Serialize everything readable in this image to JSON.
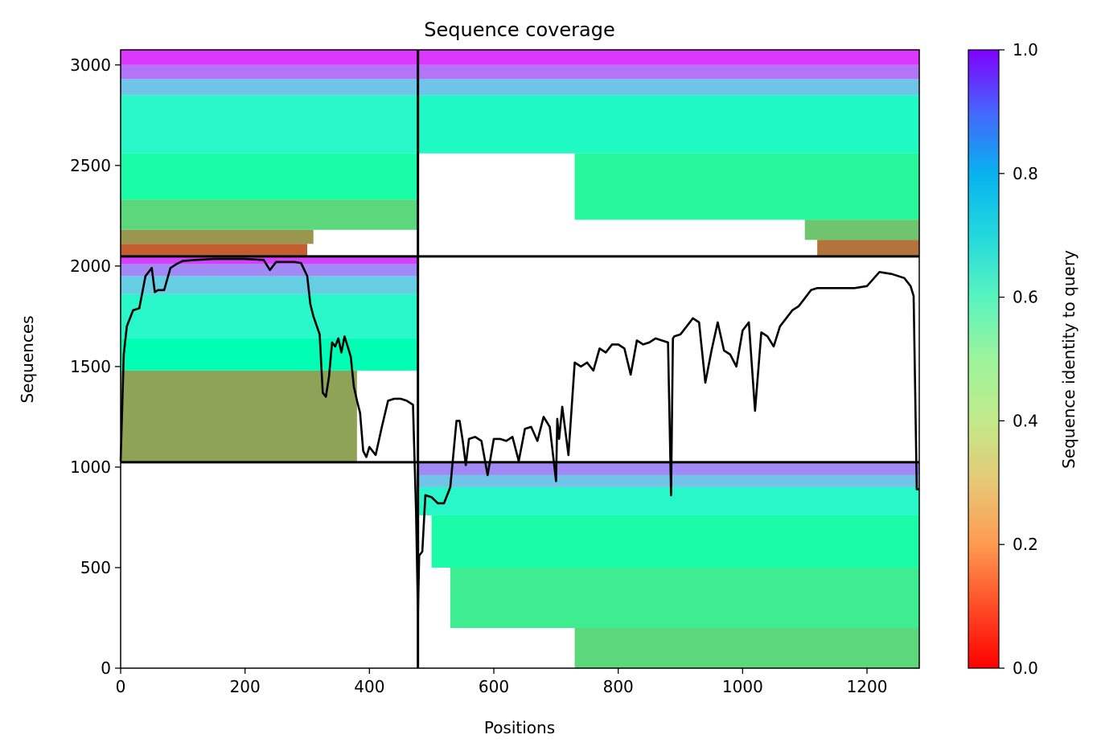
{
  "chart_data": {
    "type": "heatmap",
    "title": "Sequence coverage",
    "xlabel": "Positions",
    "ylabel": "Sequences",
    "xlim": [
      0,
      1284
    ],
    "ylim": [
      0,
      3075
    ],
    "x_ticks": [
      0,
      200,
      400,
      600,
      800,
      1000,
      1200
    ],
    "y_ticks": [
      0,
      500,
      1000,
      1500,
      2000,
      2500,
      3000
    ],
    "grid": false,
    "colormap": "rainbow_r",
    "colorbar": {
      "label": "Sequence identity to query",
      "range": [
        0.0,
        1.0
      ],
      "ticks": [
        "0.0",
        "0.2",
        "0.4",
        "0.6",
        "0.8",
        "1.0"
      ]
    },
    "divider_lines": {
      "vertical_x": 478,
      "horizontal_y": [
        1024,
        2048
      ]
    },
    "blocks": [
      {
        "x": [
          0,
          478
        ],
        "y": [
          2048,
          3075
        ],
        "bands": [
          {
            "y": [
              2048,
              2110
            ],
            "identity": 0.12,
            "x_end": 300
          },
          {
            "y": [
              2110,
              2180
            ],
            "identity": 0.2,
            "x_end": 310
          },
          {
            "y": [
              2180,
              2330
            ],
            "identity": 0.32,
            "x_end": 478
          },
          {
            "y": [
              2330,
              2560
            ],
            "identity": 0.45,
            "x_end": 478
          },
          {
            "y": [
              2560,
              2850
            ],
            "identity": 0.58,
            "x_end": 478
          },
          {
            "y": [
              2850,
              2930
            ],
            "identity": 0.72,
            "x_end": 478
          },
          {
            "y": [
              2930,
              3000
            ],
            "identity": 0.85,
            "x_end": 478
          },
          {
            "y": [
              3000,
              3075
            ],
            "identity": 0.93,
            "x_end": 478
          }
        ]
      },
      {
        "x": [
          478,
          1284
        ],
        "y": [
          2048,
          3075
        ],
        "bands": [
          {
            "y": [
              2048,
              2130
            ],
            "identity": 0.15,
            "x_start": 1120
          },
          {
            "y": [
              2130,
              2230
            ],
            "identity": 0.28,
            "x_start": 1100
          },
          {
            "y": [
              2230,
              2560
            ],
            "identity": 0.42,
            "x_start": 730
          },
          {
            "y": [
              2560,
              2850
            ],
            "identity": 0.56,
            "x_start": 478
          },
          {
            "y": [
              2850,
              2930
            ],
            "identity": 0.72,
            "x_start": 478
          },
          {
            "y": [
              2930,
              3000
            ],
            "identity": 0.85,
            "x_start": 478
          },
          {
            "y": [
              3000,
              3075
            ],
            "identity": 0.93,
            "x_start": 478
          }
        ]
      },
      {
        "x": [
          0,
          478
        ],
        "y": [
          1024,
          2048
        ],
        "bands": [
          {
            "y": [
              1024,
              1480
            ],
            "identity": 0.22,
            "x_end": 380
          },
          {
            "y": [
              1480,
              1640
            ],
            "identity": 0.5,
            "x_end": 478
          },
          {
            "y": [
              1640,
              1860
            ],
            "identity": 0.58,
            "x_end": 478
          },
          {
            "y": [
              1860,
              1950
            ],
            "identity": 0.7,
            "x_end": 478
          },
          {
            "y": [
              1950,
              2010
            ],
            "identity": 0.82,
            "x_end": 478
          },
          {
            "y": [
              2010,
              2048
            ],
            "identity": 0.92,
            "x_end": 478
          }
        ]
      },
      {
        "x": [
          478,
          1284
        ],
        "y": [
          0,
          1024
        ],
        "bands": [
          {
            "y": [
              0,
              200
            ],
            "identity": 0.32,
            "x_start": 730
          },
          {
            "y": [
              200,
              500
            ],
            "identity": 0.38,
            "x_start": 530
          },
          {
            "y": [
              500,
              760
            ],
            "identity": 0.45,
            "x_start": 500
          },
          {
            "y": [
              760,
              900
            ],
            "identity": 0.58,
            "x_start": 478
          },
          {
            "y": [
              900,
              960
            ],
            "identity": 0.72,
            "x_start": 478
          },
          {
            "y": [
              960,
              1024
            ],
            "identity": 0.82,
            "x_start": 478
          }
        ]
      }
    ],
    "coverage_line": {
      "color": "#000000",
      "x": [
        0,
        5,
        10,
        20,
        30,
        40,
        50,
        55,
        60,
        70,
        80,
        90,
        100,
        120,
        150,
        200,
        230,
        240,
        250,
        280,
        290,
        300,
        305,
        310,
        320,
        325,
        330,
        335,
        340,
        345,
        350,
        355,
        360,
        365,
        370,
        375,
        380,
        385,
        390,
        395,
        400,
        410,
        420,
        430,
        440,
        450,
        460,
        470,
        475,
        478,
        480,
        485,
        490,
        500,
        510,
        520,
        530,
        540,
        545,
        550,
        555,
        560,
        570,
        580,
        590,
        600,
        610,
        620,
        630,
        640,
        650,
        660,
        670,
        680,
        690,
        700,
        702,
        705,
        710,
        720,
        730,
        740,
        750,
        760,
        770,
        780,
        790,
        800,
        810,
        820,
        830,
        840,
        850,
        860,
        870,
        880,
        885,
        888,
        890,
        900,
        910,
        920,
        930,
        940,
        950,
        960,
        970,
        980,
        990,
        1000,
        1010,
        1020,
        1030,
        1040,
        1050,
        1060,
        1070,
        1080,
        1090,
        1100,
        1110,
        1120,
        1140,
        1160,
        1180,
        1200,
        1220,
        1240,
        1250,
        1260,
        1270,
        1275,
        1280,
        1284
      ],
      "y": [
        1030,
        1560,
        1700,
        1780,
        1790,
        1950,
        1990,
        1870,
        1880,
        1880,
        1990,
        2010,
        2025,
        2030,
        2035,
        2035,
        2030,
        1980,
        2020,
        2020,
        2015,
        1950,
        1810,
        1750,
        1660,
        1370,
        1350,
        1450,
        1620,
        1600,
        1640,
        1570,
        1650,
        1600,
        1550,
        1400,
        1330,
        1270,
        1080,
        1050,
        1100,
        1060,
        1200,
        1330,
        1340,
        1340,
        1330,
        1310,
        780,
        270,
        560,
        580,
        860,
        850,
        820,
        820,
        900,
        1230,
        1230,
        1130,
        1010,
        1140,
        1150,
        1130,
        960,
        1140,
        1140,
        1130,
        1150,
        1030,
        1190,
        1200,
        1130,
        1250,
        1200,
        930,
        1240,
        1140,
        1300,
        1060,
        1520,
        1500,
        1520,
        1480,
        1590,
        1570,
        1610,
        1610,
        1590,
        1460,
        1630,
        1610,
        1620,
        1640,
        1630,
        1620,
        860,
        1640,
        1650,
        1660,
        1700,
        1740,
        1720,
        1420,
        1580,
        1720,
        1580,
        1560,
        1500,
        1680,
        1720,
        1280,
        1670,
        1650,
        1600,
        1700,
        1740,
        1780,
        1800,
        1840,
        1880,
        1890,
        1890,
        1890,
        1890,
        1900,
        1970,
        1960,
        1950,
        1940,
        1900,
        1850,
        890,
        890
      ]
    }
  }
}
